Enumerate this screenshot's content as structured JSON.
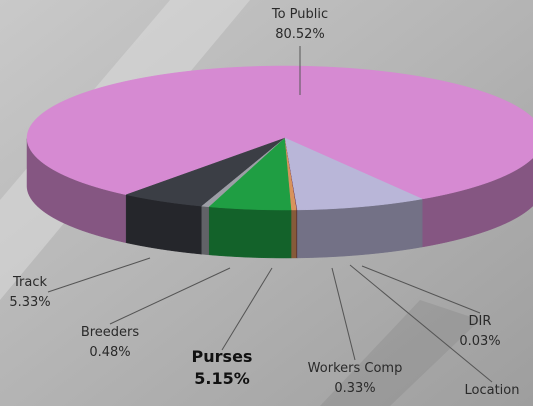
{
  "chart_data": {
    "type": "pie",
    "categories": [
      "To Public",
      "Track",
      "Breeders",
      "Purses",
      "Workers Comp",
      "DIR",
      "Location"
    ],
    "values": [
      80.52,
      5.33,
      0.48,
      5.15,
      0.33,
      0.03,
      8.16
    ],
    "value_labels": [
      "80.52%",
      "5.33%",
      "0.48%",
      "5.15%",
      "0.33%",
      "0.03%",
      null
    ],
    "colors": [
      "#d68ad2",
      "#3b3e45",
      "#9d9ea6",
      "#1f9e43",
      "#d8935c",
      "#5b1b3c",
      "#b9b6d8"
    ]
  }
}
